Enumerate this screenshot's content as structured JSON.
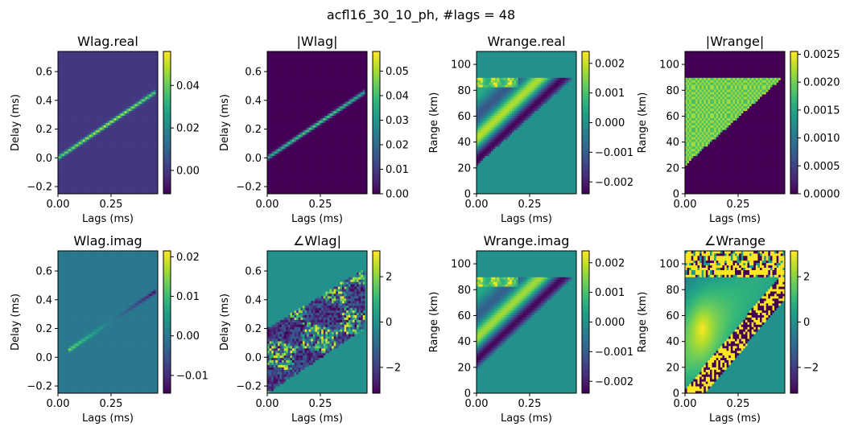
{
  "figure": {
    "suptitle": "acfl16_30_10_ph, #lags = 48"
  },
  "chart_data": [
    {
      "type": "heatmap",
      "id": "wlag-real",
      "title": "Wlag.real",
      "xlabel": "Lags (ms)",
      "ylabel": "Delay (ms)",
      "xlim": [
        0,
        0.47
      ],
      "ylim": [
        -0.25,
        0.74
      ],
      "xticks": [
        0.0,
        0.25
      ],
      "xtick_labels": [
        "0.00",
        "0.25"
      ],
      "yticks": [
        -0.2,
        0.0,
        0.2,
        0.4,
        0.6
      ],
      "ytick_labels": [
        "−0.2",
        "0.0",
        "0.2",
        "0.4",
        "0.6"
      ],
      "colorbar": {
        "range": [
          -0.011,
          0.056
        ],
        "ticks": [
          0.0,
          0.02,
          0.04
        ],
        "tick_labels": [
          "0.00",
          "0.02",
          "0.04"
        ]
      },
      "background_value": 0.0,
      "features": [
        {
          "kind": "diagonal_line",
          "from": [
            0.0,
            0.0
          ],
          "to": [
            0.46,
            0.46
          ],
          "value": 0.04,
          "peak_value": 0.056
        }
      ]
    },
    {
      "type": "heatmap",
      "id": "wlag-abs",
      "title": "|Wlag|",
      "xlabel": "Lags (ms)",
      "ylabel": "Delay (ms)",
      "xlim": [
        0,
        0.47
      ],
      "ylim": [
        -0.25,
        0.74
      ],
      "xticks": [
        0.0,
        0.25
      ],
      "xtick_labels": [
        "0.00",
        "0.25"
      ],
      "yticks": [
        -0.2,
        0.0,
        0.2,
        0.4,
        0.6
      ],
      "ytick_labels": [
        "−0.2",
        "0.0",
        "0.2",
        "0.4",
        "0.6"
      ],
      "colorbar": {
        "range": [
          0.0,
          0.058
        ],
        "ticks": [
          0.0,
          0.01,
          0.02,
          0.03,
          0.04,
          0.05
        ],
        "tick_labels": [
          "0.00",
          "0.01",
          "0.02",
          "0.03",
          "0.04",
          "0.05"
        ]
      },
      "background_value": 0.0,
      "features": [
        {
          "kind": "diagonal_line",
          "from": [
            0.0,
            0.0
          ],
          "to": [
            0.46,
            0.46
          ],
          "value": 0.035,
          "peak_value": 0.05
        }
      ]
    },
    {
      "type": "heatmap",
      "id": "wrange-real",
      "title": "Wrange.real",
      "xlabel": "Lags (ms)",
      "ylabel": "Range (km)",
      "xlim": [
        0,
        0.47
      ],
      "ylim": [
        0,
        110
      ],
      "xticks": [
        0.0,
        0.25
      ],
      "xtick_labels": [
        "0.00",
        "0.25"
      ],
      "yticks": [
        0,
        20,
        40,
        60,
        80,
        100
      ],
      "ytick_labels": [
        "0",
        "20",
        "40",
        "60",
        "80",
        "100"
      ],
      "colorbar": {
        "range": [
          -0.0024,
          0.0024
        ],
        "ticks": [
          -0.002,
          -0.001,
          0.0,
          0.001,
          0.002
        ],
        "tick_labels": [
          "−0.002",
          "−0.001",
          "0.000",
          "0.001",
          "0.002"
        ]
      },
      "background_value": 0.0,
      "features": [
        {
          "kind": "oscillating_wedge",
          "x_range": [
            0.0,
            0.46
          ],
          "y_low": [
            22,
            90
          ],
          "y_high": 90,
          "amplitude": 0.0024
        }
      ]
    },
    {
      "type": "heatmap",
      "id": "wrange-abs",
      "title": "|Wrange|",
      "xlabel": "Lags (ms)",
      "ylabel": "Range (km)",
      "xlim": [
        0,
        0.47
      ],
      "ylim": [
        0,
        110
      ],
      "xticks": [
        0.0,
        0.25
      ],
      "xtick_labels": [
        "0.00",
        "0.25"
      ],
      "yticks": [
        0,
        20,
        40,
        60,
        80,
        100
      ],
      "ytick_labels": [
        "0",
        "20",
        "40",
        "60",
        "80",
        "100"
      ],
      "colorbar": {
        "range": [
          0.0,
          0.00255
        ],
        "ticks": [
          0.0,
          0.0005,
          0.001,
          0.0015,
          0.002,
          0.0025
        ],
        "tick_labels": [
          "0.0000",
          "0.0005",
          "0.0010",
          "0.0015",
          "0.0020",
          "0.0025"
        ]
      },
      "background_value": 0.0,
      "features": [
        {
          "kind": "checker_wedge",
          "x_range": [
            0.0,
            0.46
          ],
          "y_low": [
            22,
            90
          ],
          "y_high": 90,
          "values": [
            0.0018,
            0.0022
          ]
        }
      ]
    },
    {
      "type": "heatmap",
      "id": "wlag-imag",
      "title": "Wlag.imag",
      "xlabel": "Lags (ms)",
      "ylabel": "Delay (ms)",
      "xlim": [
        0,
        0.47
      ],
      "ylim": [
        -0.25,
        0.74
      ],
      "xticks": [
        0.0,
        0.25
      ],
      "xtick_labels": [
        "0.00",
        "0.25"
      ],
      "yticks": [
        -0.2,
        0.0,
        0.2,
        0.4,
        0.6
      ],
      "ytick_labels": [
        "−0.2",
        "0.0",
        "0.2",
        "0.4",
        "0.6"
      ],
      "colorbar": {
        "range": [
          -0.0145,
          0.0215
        ],
        "ticks": [
          -0.01,
          0.0,
          0.01,
          0.02
        ],
        "tick_labels": [
          "−0.01",
          "0.00",
          "0.01",
          "0.02"
        ]
      },
      "background_value": 0.0,
      "features": [
        {
          "kind": "diagonal_line",
          "from": [
            0.05,
            0.05
          ],
          "to": [
            0.46,
            0.46
          ],
          "value_start": 0.015,
          "value_end": -0.014
        }
      ]
    },
    {
      "type": "heatmap",
      "id": "wlag-phase",
      "title": "∠Wlag|",
      "xlabel": "Lags (ms)",
      "ylabel": "Delay (ms)",
      "xlim": [
        0,
        0.47
      ],
      "ylim": [
        -0.25,
        0.74
      ],
      "xticks": [
        0.0,
        0.25
      ],
      "xtick_labels": [
        "0.00",
        "0.25"
      ],
      "yticks": [
        -0.2,
        0.0,
        0.2,
        0.4,
        0.6
      ],
      "ytick_labels": [
        "−0.2",
        "0.0",
        "0.2",
        "0.4",
        "0.6"
      ],
      "colorbar": {
        "range": [
          -3.14,
          3.14
        ],
        "ticks": [
          -2,
          0,
          2
        ],
        "tick_labels": [
          "−2",
          "0",
          "2"
        ]
      },
      "background_value": 0.0,
      "features": [
        {
          "kind": "noisy_band",
          "x_range": [
            0.0,
            0.46
          ],
          "y_low": [
            -0.25,
            0.2
          ],
          "y_high": [
            0.2,
            0.62
          ],
          "range": [
            -3.14,
            3.14
          ]
        }
      ]
    },
    {
      "type": "heatmap",
      "id": "wrange-imag",
      "title": "Wrange.imag",
      "xlabel": "Lags (ms)",
      "ylabel": "Range (km)",
      "xlim": [
        0,
        0.47
      ],
      "ylim": [
        0,
        110
      ],
      "xticks": [
        0.0,
        0.25
      ],
      "xtick_labels": [
        "0.00",
        "0.25"
      ],
      "yticks": [
        0,
        20,
        40,
        60,
        80,
        100
      ],
      "ytick_labels": [
        "0",
        "20",
        "40",
        "60",
        "80",
        "100"
      ],
      "colorbar": {
        "range": [
          -0.0024,
          0.0024
        ],
        "ticks": [
          -0.002,
          -0.001,
          0.0,
          0.001,
          0.002
        ],
        "tick_labels": [
          "−0.002",
          "−0.001",
          "0.000",
          "0.001",
          "0.002"
        ]
      },
      "background_value": 0.0,
      "features": [
        {
          "kind": "oscillating_wedge",
          "x_range": [
            0.0,
            0.46
          ],
          "y_low": [
            18,
            90
          ],
          "y_high": 90,
          "amplitude": 0.0024
        }
      ]
    },
    {
      "type": "heatmap",
      "id": "wrange-phase",
      "title": "∠Wrange",
      "xlabel": "Lags (ms)",
      "ylabel": "Range (km)",
      "xlim": [
        0,
        0.47
      ],
      "ylim": [
        0,
        110
      ],
      "xticks": [
        0.0,
        0.25
      ],
      "xtick_labels": [
        "0.00",
        "0.25"
      ],
      "yticks": [
        0,
        20,
        40,
        60,
        80,
        100
      ],
      "ytick_labels": [
        "0",
        "20",
        "40",
        "60",
        "80",
        "100"
      ],
      "colorbar": {
        "range": [
          -3.14,
          3.14
        ],
        "ticks": [
          -2,
          0,
          2
        ],
        "tick_labels": [
          "−2",
          "0",
          "2"
        ]
      },
      "background_value": 0.0,
      "features": [
        {
          "kind": "smooth_phase_wedge",
          "x_range": [
            0.0,
            0.46
          ],
          "y_low": [
            0,
            90
          ],
          "y_high": 90,
          "range": [
            -3.14,
            3.14
          ]
        },
        {
          "kind": "noisy_region",
          "y_range": [
            90,
            110
          ],
          "range": [
            -3.14,
            3.14
          ]
        }
      ]
    }
  ]
}
